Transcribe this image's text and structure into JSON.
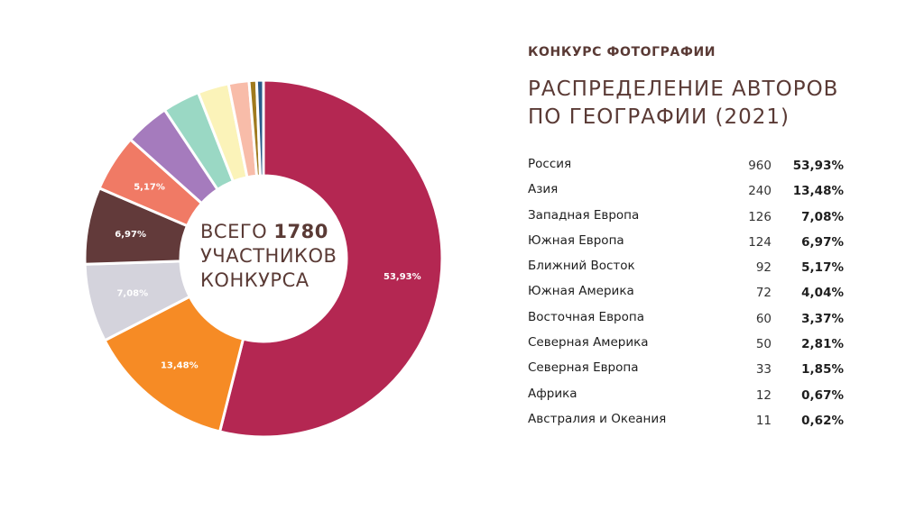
{
  "header": {
    "kicker": "КОНКУРС ФОТОГРАФИИ",
    "title_line1": "РАСПРЕДЕЛЕНИЕ АВТОРОВ",
    "title_line2": "ПО ГЕОГРАФИИ (2021)"
  },
  "center": {
    "line1_prefix": "ВСЕГО",
    "total": "1780",
    "line2": "УЧАСТНИКОВ",
    "line3": "КОНКУРСА"
  },
  "chart_data": {
    "type": "pie",
    "donut": true,
    "total": 1780,
    "categories": [
      "Россия",
      "Азия",
      "Западная Европа",
      "Южная Европа",
      "Ближний Восток",
      "Южная Америка",
      "Восточная Европа",
      "Северная Америка",
      "Северная Европа",
      "Африка",
      "Австралия и Океания"
    ],
    "values": [
      960,
      240,
      126,
      124,
      92,
      72,
      60,
      50,
      33,
      12,
      11
    ],
    "percent_labels": [
      "53,93%",
      "13,48%",
      "7,08%",
      "6,97%",
      "5,17%",
      "4,04%",
      "3,37%",
      "2,81%",
      "1,85%",
      "0,67%",
      "0,62%"
    ],
    "slice_labels": [
      "53,93%",
      "13,48%",
      "7,08%",
      "6,97%",
      "5,17%",
      "",
      "",
      "",
      "",
      "",
      ""
    ],
    "colors": [
      "#b42752",
      "#f68b25",
      "#d4d3dc",
      "#623a3a",
      "#f07a65",
      "#a57bbd",
      "#9ad8c4",
      "#fbf3b9",
      "#f8bca9",
      "#a07a1e",
      "#2b5a8a"
    ],
    "label_colors": [
      "#ffffff",
      "#ffffff",
      "#ffffff",
      "#ffffff",
      "#ffffff"
    ]
  }
}
